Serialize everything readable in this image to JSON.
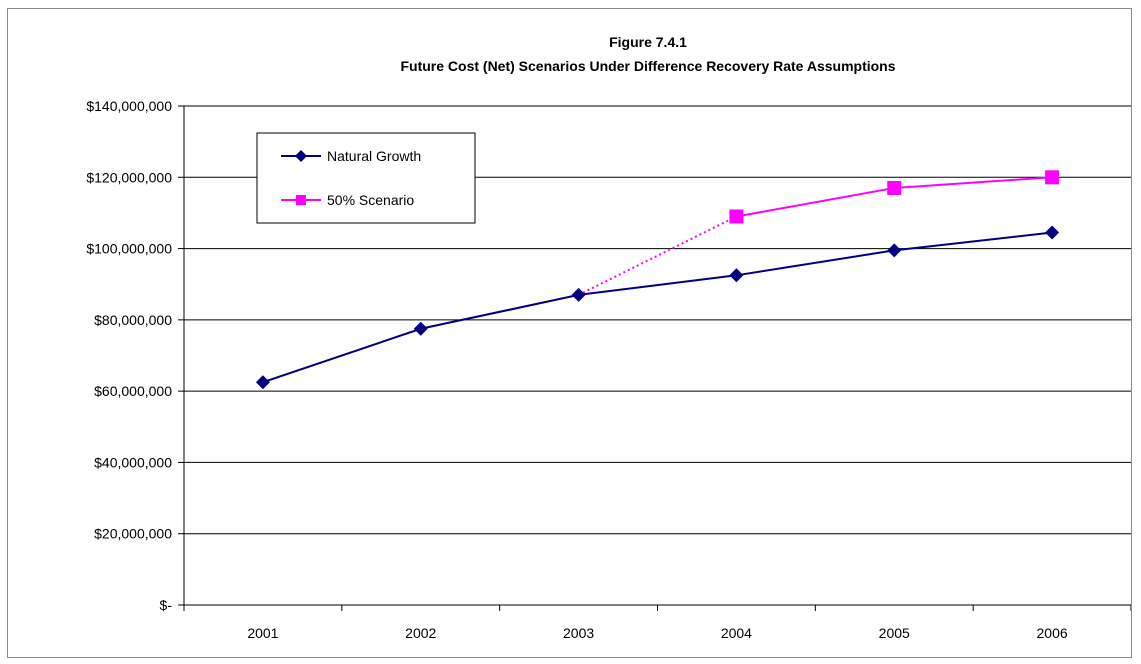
{
  "chart_data": {
    "type": "line",
    "title": "Figure 7.4.1",
    "subtitle": "Future Cost (Net) Scenarios Under Difference Recovery Rate Assumptions",
    "xlabel": "",
    "ylabel": "",
    "categories": [
      "2001",
      "2002",
      "2003",
      "2004",
      "2005",
      "2006"
    ],
    "ylim": [
      0,
      140000000
    ],
    "yticks": [
      0,
      20000000,
      40000000,
      60000000,
      80000000,
      100000000,
      120000000,
      140000000
    ],
    "ytick_labels": [
      "$-",
      "$20,000,000",
      "$40,000,000",
      "$60,000,000",
      "$80,000,000",
      "$100,000,000",
      "$120,000,000",
      "$140,000,000"
    ],
    "grid": true,
    "legend_position": "top-left",
    "series": [
      {
        "name": "Natural Growth",
        "values": [
          62500000,
          77500000,
          87000000,
          92500000,
          99500000,
          104500000
        ],
        "color": "#000080",
        "marker": "diamond"
      },
      {
        "name": "50% Scenario",
        "values": [
          null,
          null,
          87000000,
          109000000,
          117000000,
          120000000
        ],
        "color": "#ff00ff",
        "marker": "square",
        "connector_dotted_from": "2003"
      }
    ]
  }
}
